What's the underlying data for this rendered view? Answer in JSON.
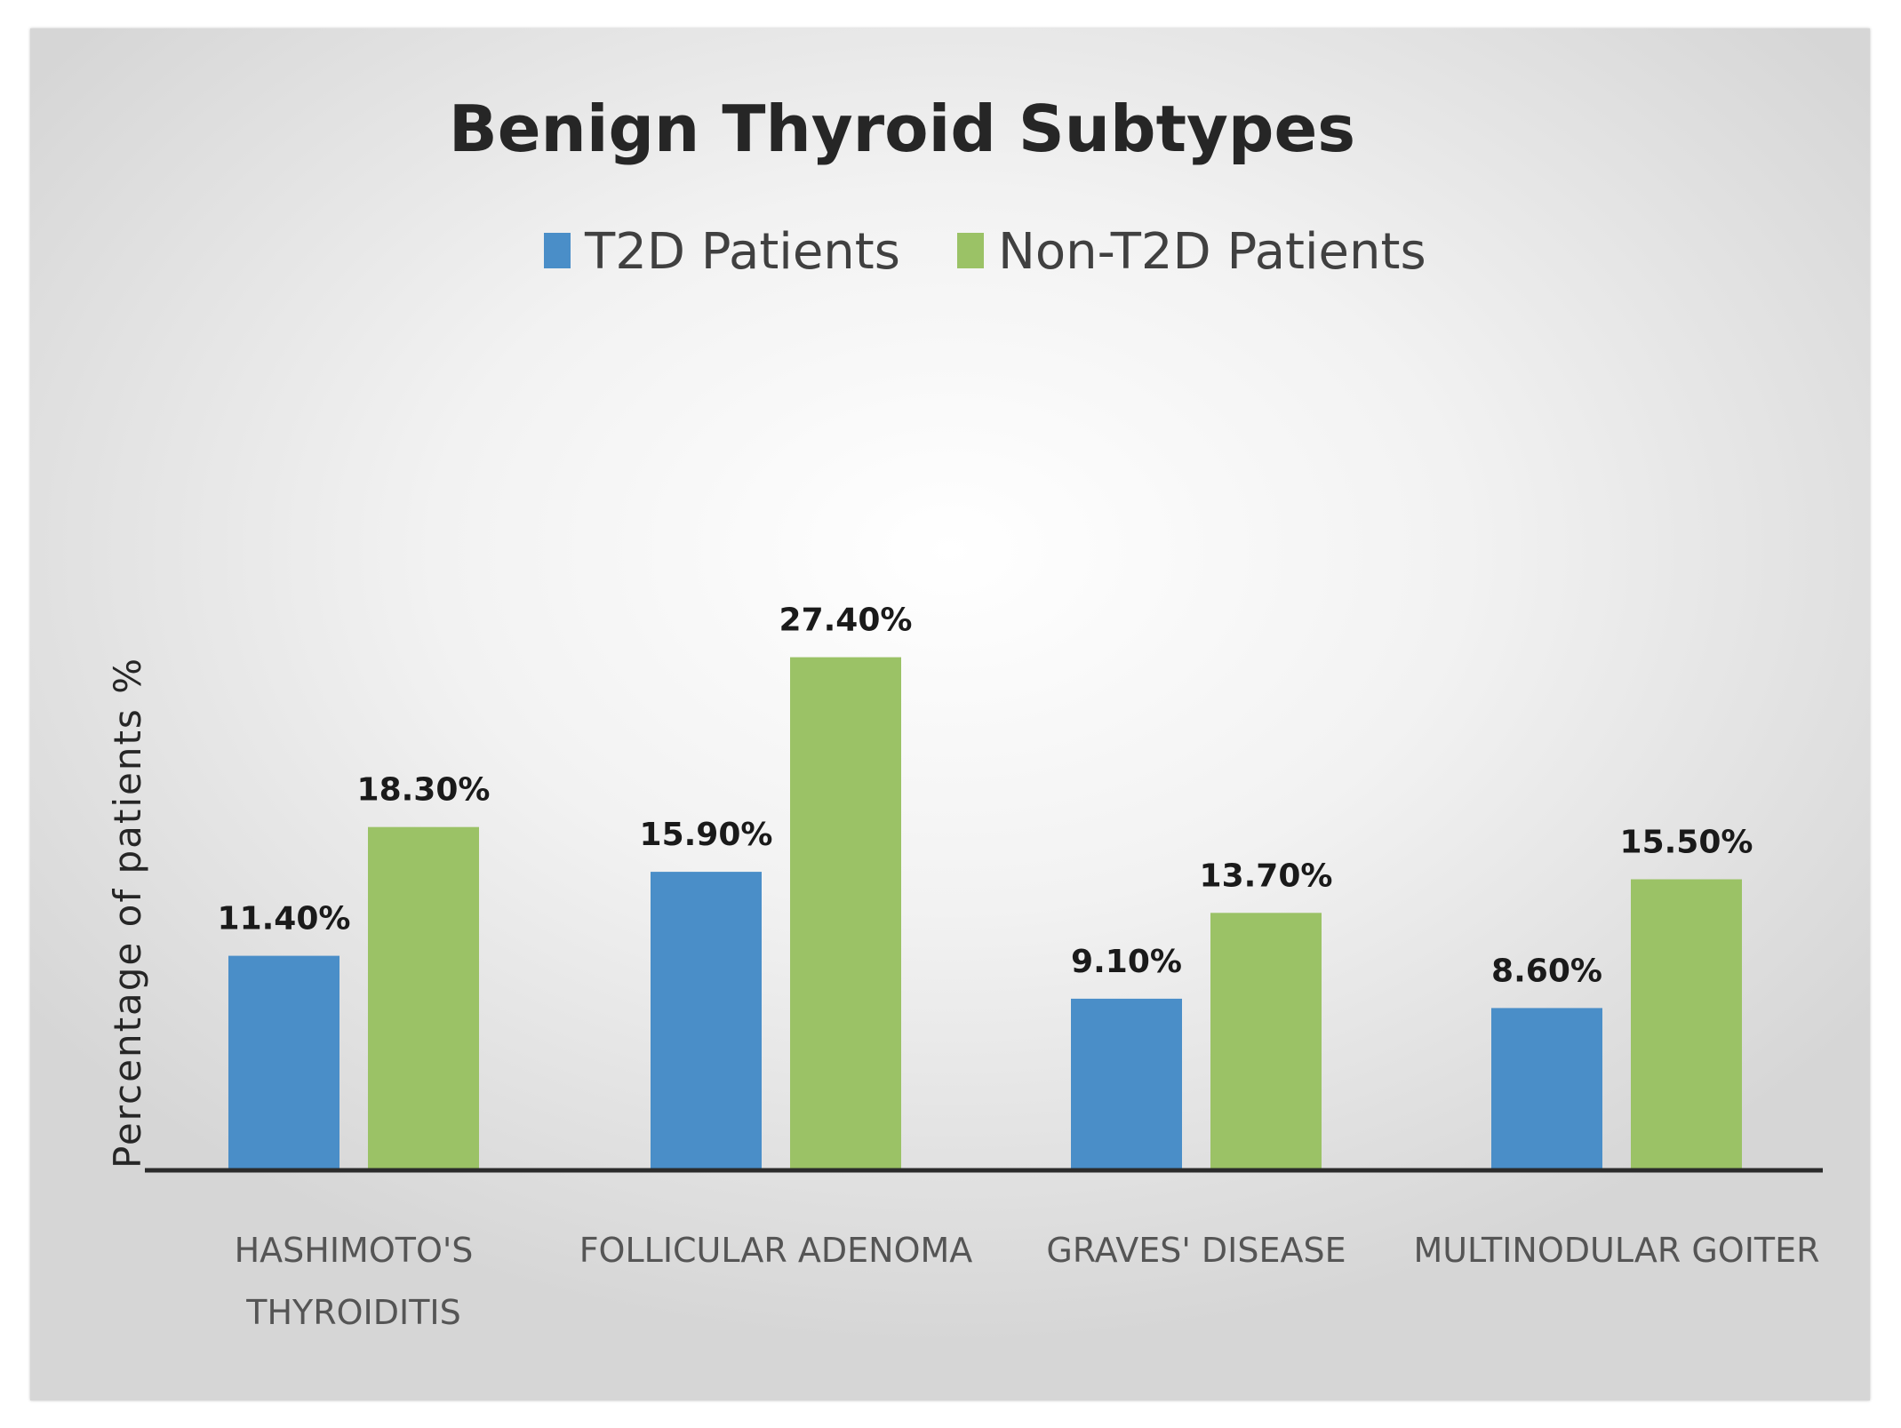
{
  "chart_data": {
    "type": "bar",
    "title": "Benign Thyroid Subtypes",
    "xlabel": "",
    "ylabel": "Percentage of patients %",
    "ylim": [
      0,
      30
    ],
    "grid": false,
    "legend_position": "top-center",
    "categories": [
      [
        "HASHIMOTO'S",
        "THYROIDITIS"
      ],
      [
        "FOLLICULAR ADENOMA"
      ],
      [
        "GRAVES' DISEASE"
      ],
      [
        "MULTINODULAR GOITER"
      ]
    ],
    "series": [
      {
        "name": "T2D Patients",
        "color": "#4a8ec8",
        "values": [
          11.4,
          15.9,
          9.1,
          8.6
        ],
        "labels": [
          "11.40%",
          "15.90%",
          "9.10%",
          "8.60%"
        ]
      },
      {
        "name": "Non-T2D Patients",
        "color": "#9bc266",
        "values": [
          18.3,
          27.4,
          13.7,
          15.5
        ],
        "labels": [
          "18.30%",
          "27.40%",
          "13.70%",
          "15.50%"
        ]
      }
    ]
  },
  "colors": {
    "axis": "#2b2b2b"
  }
}
